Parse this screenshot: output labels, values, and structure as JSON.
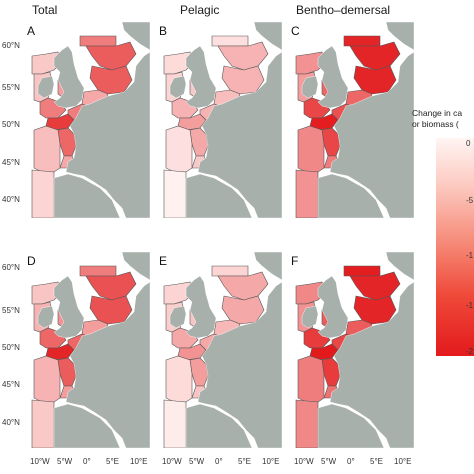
{
  "columns": [
    "Total",
    "Pelagic",
    "Bentho–demersal"
  ],
  "panels": [
    {
      "letter": "A",
      "shades": {
        "norway": 0.55,
        "ns_north": 0.7,
        "ns_central": 0.7,
        "ns_south": 0.35,
        "west_scot": 0.2,
        "ireland": 0.22,
        "celtic": 0.55,
        "irish_sea": 0.4,
        "channel_w": 0.85,
        "channel_e": 0.55,
        "bay_north": 0.65,
        "bay_south": 0.35,
        "iberia": 0.15,
        "ocean_west": 0.25
      }
    },
    {
      "letter": "B",
      "shades": {
        "norway": 0.1,
        "ns_north": 0.3,
        "ns_central": 0.3,
        "ns_south": 0.25,
        "west_scot": 0.12,
        "ireland": 0.15,
        "celtic": 0.3,
        "irish_sea": 0.2,
        "channel_w": 0.4,
        "channel_e": 0.3,
        "bay_north": 0.35,
        "bay_south": 0.2,
        "iberia": 0.02,
        "ocean_west": 0.1
      }
    },
    {
      "letter": "C",
      "shades": {
        "norway": 0.95,
        "ns_north": 0.95,
        "ns_central": 0.95,
        "ns_south": 0.65,
        "west_scot": 0.45,
        "ireland": 0.4,
        "celtic": 0.8,
        "irish_sea": 0.65,
        "channel_w": 0.98,
        "channel_e": 0.75,
        "bay_north": 0.8,
        "bay_south": 0.55,
        "iberia": 0.45,
        "ocean_west": 0.5
      }
    },
    {
      "letter": "D",
      "shades": {
        "norway": 0.55,
        "ns_north": 0.75,
        "ns_central": 0.75,
        "ns_south": 0.4,
        "west_scot": 0.22,
        "ireland": 0.3,
        "celtic": 0.65,
        "irish_sea": 0.45,
        "channel_w": 0.95,
        "channel_e": 0.65,
        "bay_north": 0.7,
        "bay_south": 0.4,
        "iberia": 0.2,
        "ocean_west": 0.3
      }
    },
    {
      "letter": "E",
      "shades": {
        "norway": 0.15,
        "ns_north": 0.35,
        "ns_central": 0.35,
        "ns_south": 0.28,
        "west_scot": 0.15,
        "ireland": 0.18,
        "celtic": 0.35,
        "irish_sea": 0.22,
        "channel_w": 0.45,
        "channel_e": 0.35,
        "bay_north": 0.4,
        "bay_south": 0.22,
        "iberia": 0.04,
        "ocean_west": 0.12
      }
    },
    {
      "letter": "F",
      "shades": {
        "norway": 0.98,
        "ns_north": 0.95,
        "ns_central": 0.95,
        "ns_south": 0.7,
        "west_scot": 0.5,
        "ireland": 0.45,
        "celtic": 0.85,
        "irish_sea": 0.7,
        "channel_w": 1.0,
        "channel_e": 0.8,
        "bay_north": 0.85,
        "bay_south": 0.6,
        "iberia": 0.5,
        "ocean_west": 0.55
      }
    }
  ],
  "lat_ticks": [
    "60°N",
    "55°N",
    "50°N",
    "45°N",
    "40°N"
  ],
  "lon_ticks": [
    "10°W",
    "5°W",
    "0°",
    "5°E",
    "10°E"
  ],
  "legend": {
    "title_line1": "Change in ca",
    "title_line2": "or biomass (",
    "ticks": [
      "0",
      "-5",
      "-1",
      "-1",
      "-2"
    ]
  },
  "colors": {
    "land": "#a8b0ac",
    "low": "#fff5f3",
    "high": "#e31a1c",
    "border": "#555555"
  }
}
